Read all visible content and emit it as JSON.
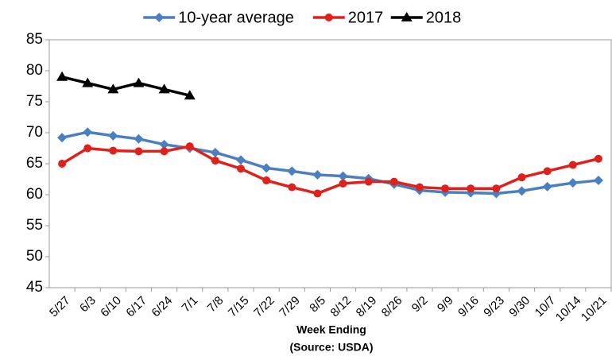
{
  "chart_data": {
    "type": "line",
    "categories": [
      "5/27",
      "6/3",
      "6/10",
      "6/17",
      "6/24",
      "7/1",
      "7/8",
      "7/15",
      "7/22",
      "7/29",
      "8/5",
      "8/12",
      "8/19",
      "8/26",
      "9/2",
      "9/9",
      "9/16",
      "9/23",
      "9/30",
      "10/7",
      "10/14",
      "10/21"
    ],
    "series": [
      {
        "name": "10-year average",
        "color": "#4a7fc1",
        "marker": "diamond",
        "values": [
          69.2,
          70.1,
          69.5,
          69.0,
          68.1,
          67.5,
          66.8,
          65.6,
          64.3,
          63.8,
          63.2,
          63.0,
          62.6,
          61.7,
          60.7,
          60.4,
          60.3,
          60.2,
          60.6,
          61.3,
          61.9,
          62.3
        ]
      },
      {
        "name": "2017",
        "color": "#e0201b",
        "marker": "circle",
        "values": [
          65.0,
          67.5,
          67.1,
          67.0,
          67.0,
          67.8,
          65.5,
          64.2,
          62.3,
          61.2,
          60.2,
          61.8,
          62.1,
          62.1,
          61.2,
          61.0,
          61.0,
          61.0,
          62.8,
          63.8,
          64.8,
          65.8
        ]
      },
      {
        "name": "2018",
        "color": "#000000",
        "marker": "triangle",
        "values": [
          79,
          78,
          77,
          78,
          77,
          76,
          null,
          null,
          null,
          null,
          null,
          null,
          null,
          null,
          null,
          null,
          null,
          null,
          null,
          null,
          null,
          null
        ]
      }
    ],
    "ylim": [
      45,
      85
    ],
    "yticks": [
      45,
      50,
      55,
      60,
      65,
      70,
      75,
      80,
      85
    ],
    "x_label": "Week Ending",
    "source": "(Source: USDA)",
    "grid": false,
    "legend": "top"
  }
}
